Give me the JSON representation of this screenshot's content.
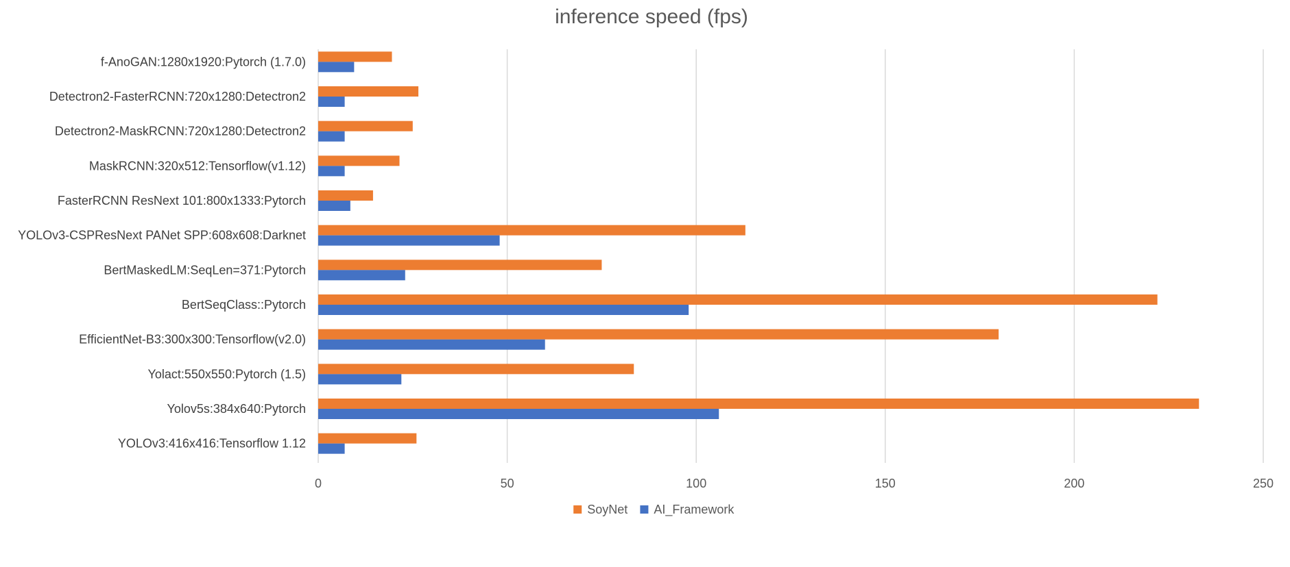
{
  "chart_data": {
    "type": "bar",
    "orientation": "horizontal",
    "title": "inference speed (fps)",
    "xlabel": "",
    "ylabel": "",
    "xlim": [
      0,
      250
    ],
    "x_ticks": [
      0,
      50,
      100,
      150,
      200,
      250
    ],
    "grid": true,
    "legend_position": "bottom",
    "categories": [
      "YOLOv3:416x416:Tensorflow 1.12",
      "Yolov5s:384x640:Pytorch",
      "Yolact:550x550:Pytorch (1.5)",
      "EfficientNet-B3:300x300:Tensorflow(v2.0)",
      "BertSeqClass::Pytorch",
      "BertMaskedLM:SeqLen=371:Pytorch",
      "YOLOv3-CSPResNext PANet SPP:608x608:Darknet",
      "FasterRCNN ResNext 101:800x1333:Pytorch",
      "MaskRCNN:320x512:Tensorflow(v1.12)",
      "Detectron2-MaskRCNN:720x1280:Detectron2",
      "Detectron2-FasterRCNN:720x1280:Detectron2",
      "f-AnoGAN:1280x1920:Pytorch (1.7.0)"
    ],
    "series": [
      {
        "name": "SoyNet",
        "color": "#ed7d31",
        "values": [
          26,
          233,
          83.5,
          180,
          222,
          75,
          113,
          14.5,
          21.5,
          25,
          26.5,
          19.5
        ]
      },
      {
        "name": "AI_Framework",
        "color": "#4472c4",
        "values": [
          7,
          106,
          22,
          60,
          98,
          23,
          48,
          8.5,
          7,
          7,
          7,
          9.5
        ]
      }
    ]
  }
}
